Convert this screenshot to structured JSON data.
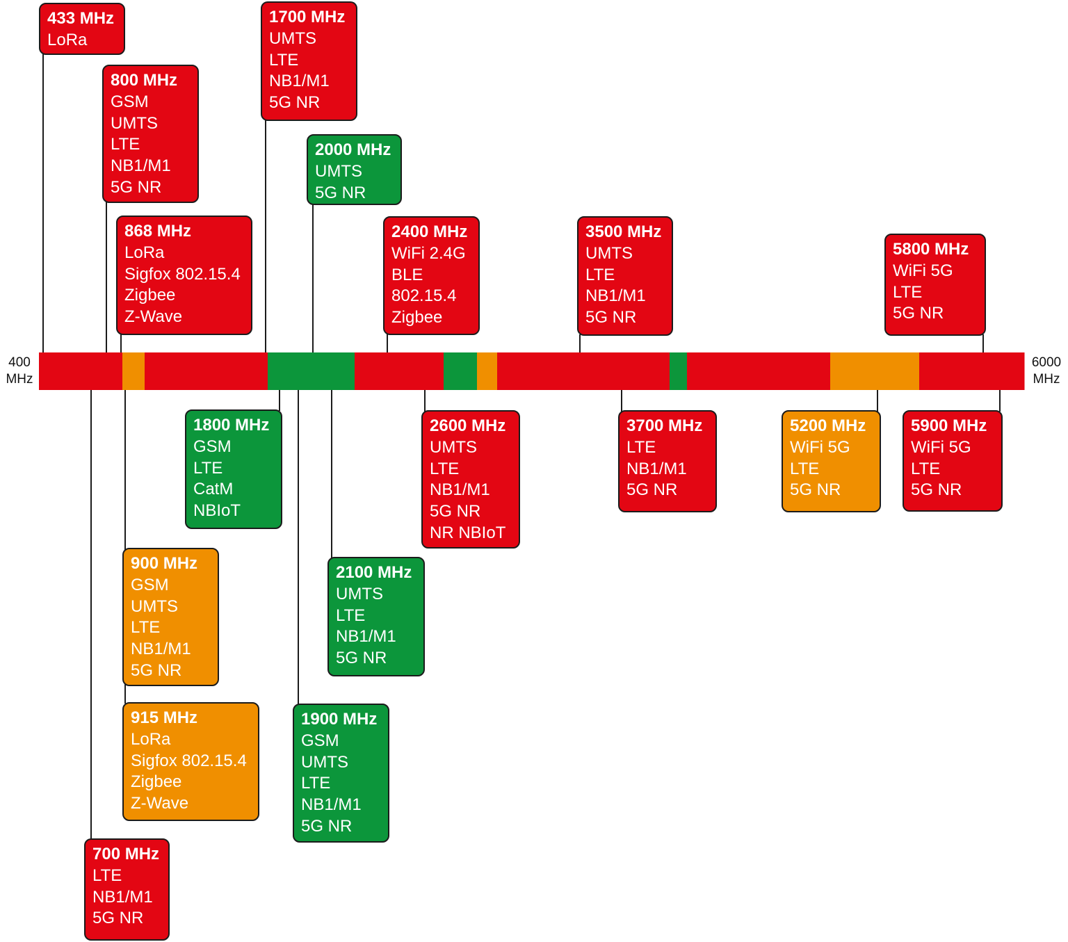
{
  "colors": {
    "red": "#e30613",
    "green": "#0c963b",
    "orange": "#f08f00",
    "line": "#1b1b1b"
  },
  "axis": {
    "min_value": 400,
    "max_value": 6000,
    "min_label": [
      "400",
      "MHz"
    ],
    "max_label": [
      "6000",
      "MHz"
    ]
  },
  "bands": [
    {
      "id": "b433",
      "freq": "433 MHz",
      "color": "red",
      "techs": [
        "LoRa"
      ]
    },
    {
      "id": "b800",
      "freq": "800 MHz",
      "color": "red",
      "techs": [
        "GSM",
        "UMTS",
        "LTE",
        "NB1/M1",
        "5G NR"
      ]
    },
    {
      "id": "b868",
      "freq": "868 MHz",
      "color": "red",
      "techs": [
        "LoRa",
        "Sigfox 802.15.4",
        "Zigbee",
        "Z-Wave"
      ]
    },
    {
      "id": "b1700",
      "freq": "1700 MHz",
      "color": "red",
      "techs": [
        "UMTS",
        "LTE",
        "NB1/M1",
        "5G NR"
      ]
    },
    {
      "id": "b2000",
      "freq": "2000 MHz",
      "color": "green",
      "techs": [
        "UMTS",
        "5G NR"
      ]
    },
    {
      "id": "b2400",
      "freq": "2400 MHz",
      "color": "red",
      "techs": [
        "WiFi 2.4G",
        "BLE",
        "802.15.4",
        "Zigbee"
      ]
    },
    {
      "id": "b3500",
      "freq": "3500 MHz",
      "color": "red",
      "techs": [
        "UMTS",
        "LTE",
        "NB1/M1",
        "5G NR"
      ]
    },
    {
      "id": "b5800",
      "freq": "5800 MHz",
      "color": "red",
      "techs": [
        "WiFi 5G",
        "LTE",
        "5G NR"
      ]
    },
    {
      "id": "b1800",
      "freq": "1800 MHz",
      "color": "green",
      "techs": [
        "GSM",
        "LTE",
        "CatM",
        "NBIoT"
      ]
    },
    {
      "id": "b2600",
      "freq": "2600 MHz",
      "color": "red",
      "techs": [
        "UMTS",
        "LTE",
        "NB1/M1",
        "5G NR",
        "NR NBIoT"
      ]
    },
    {
      "id": "b3700",
      "freq": "3700 MHz",
      "color": "red",
      "techs": [
        "LTE",
        "NB1/M1",
        "5G NR"
      ]
    },
    {
      "id": "b5200",
      "freq": "5200 MHz",
      "color": "orange",
      "techs": [
        "WiFi 5G",
        "LTE",
        "5G NR"
      ]
    },
    {
      "id": "b5900",
      "freq": "5900 MHz",
      "color": "red",
      "techs": [
        "WiFi 5G",
        "LTE",
        "5G NR"
      ]
    },
    {
      "id": "b900",
      "freq": "900 MHz",
      "color": "orange",
      "techs": [
        "GSM",
        "UMTS",
        "LTE",
        "NB1/M1",
        "5G NR"
      ]
    },
    {
      "id": "b2100",
      "freq": "2100 MHz",
      "color": "green",
      "techs": [
        "UMTS",
        "LTE",
        "NB1/M1",
        "5G NR"
      ]
    },
    {
      "id": "b915",
      "freq": "915 MHz",
      "color": "orange",
      "techs": [
        "LoRa",
        "Sigfox 802.15.4",
        "Zigbee",
        "Z-Wave"
      ]
    },
    {
      "id": "b1900",
      "freq": "1900 MHz",
      "color": "green",
      "techs": [
        "GSM",
        "UMTS",
        "LTE",
        "NB1/M1",
        "5G NR"
      ]
    },
    {
      "id": "b700",
      "freq": "700 MHz",
      "color": "red",
      "techs": [
        "LTE",
        "NB1/M1",
        "5G NR"
      ]
    }
  ],
  "spectrum_bar": [
    {
      "color": "red"
    },
    {
      "color": "orange"
    },
    {
      "color": "red"
    },
    {
      "color": "green"
    },
    {
      "color": "red"
    },
    {
      "color": "green"
    },
    {
      "color": "orange"
    },
    {
      "color": "red"
    },
    {
      "color": "green"
    },
    {
      "color": "red"
    },
    {
      "color": "orange"
    },
    {
      "color": "red"
    }
  ]
}
